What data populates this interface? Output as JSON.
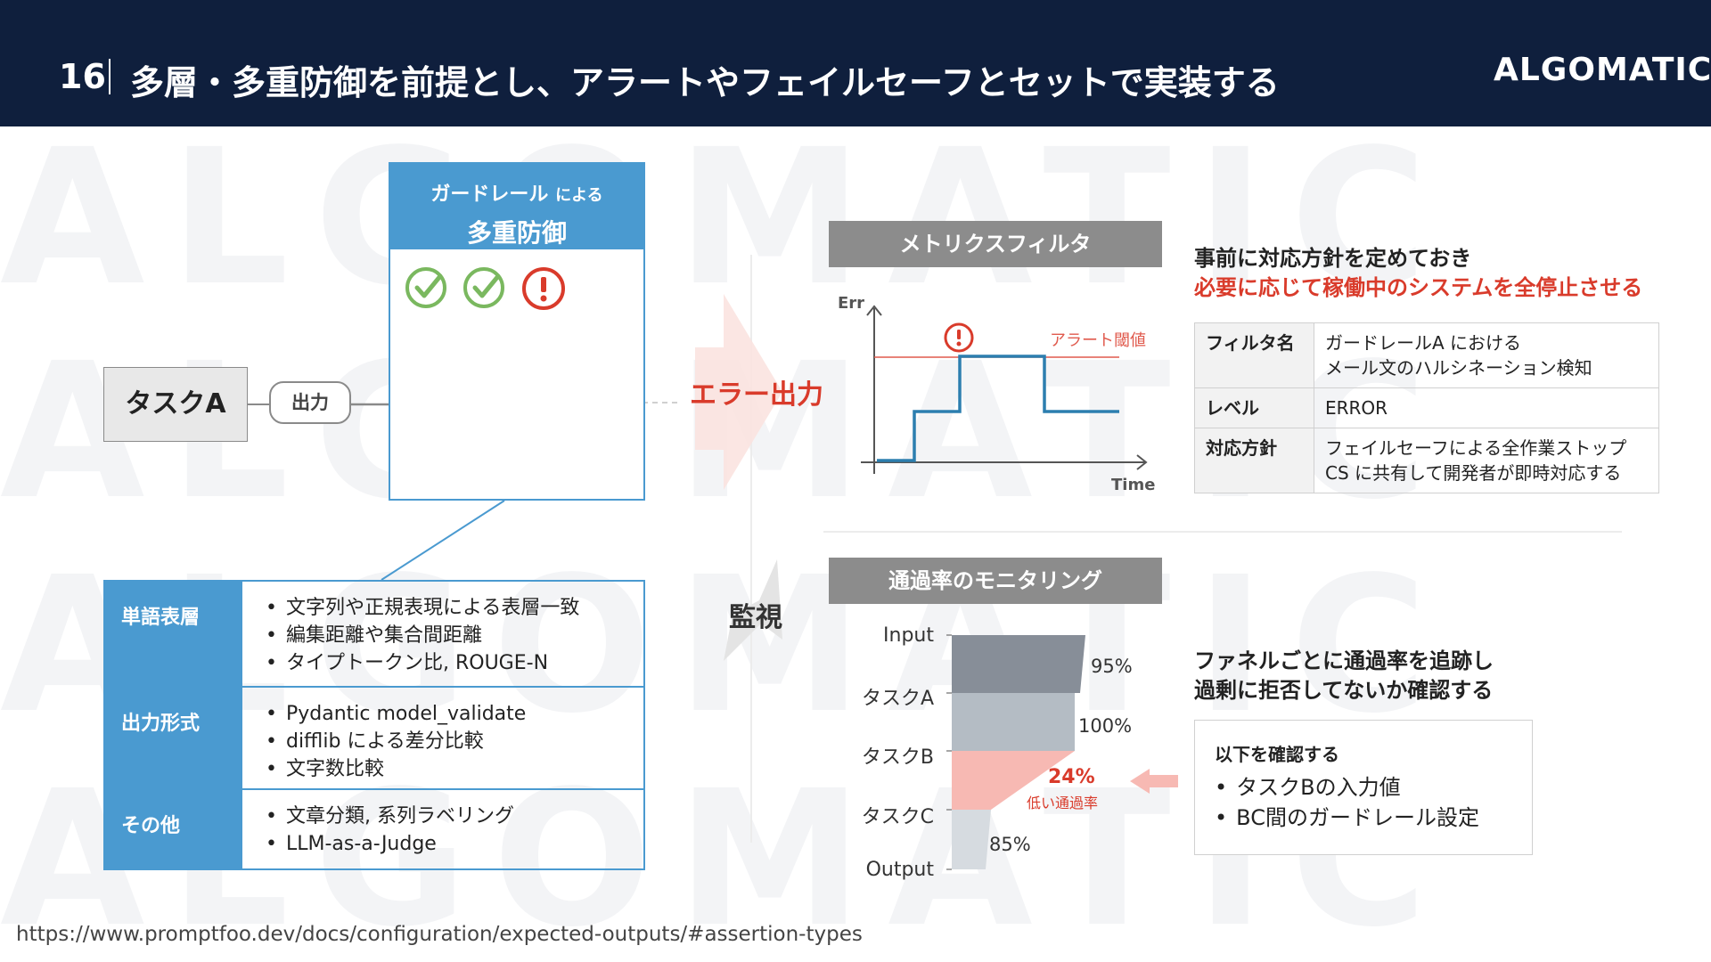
{
  "header": {
    "slide_number": "16",
    "title": "多層・多重防御を前提とし、アラートやフェイルセーフとセットで実装する",
    "logo": "ALGOMATIC"
  },
  "watermark": {
    "lines": [
      "ALGOMATIC",
      "ALGOMATIC",
      "ALGOMATIC",
      "ALGOMATIC"
    ]
  },
  "guardrail": {
    "heading_main": "ガードレール",
    "heading_small": "による",
    "heading_sub": "多重防御",
    "gates": [
      "pass",
      "pass",
      "alert",
      "idle"
    ],
    "task_label": "タスクA",
    "output_label": "出力",
    "error_label": "エラー出力",
    "monitor_label": "監視"
  },
  "methods": [
    {
      "key": "単語表層",
      "items": [
        "文字列や正規表現による表層一致",
        "編集距離や集合間距離",
        "タイプトークン比, ROUGE-N"
      ]
    },
    {
      "key": "出力形式",
      "items": [
        "Pydantic model_validate",
        "difflib による差分比較",
        "文字数比較"
      ]
    },
    {
      "key": "その他",
      "items": [
        "文章分類, 系列ラベリング",
        "LLM-as-a-Judge"
      ]
    }
  ],
  "metrics_filter": {
    "heading": "メトリクスフィルタ",
    "y_axis_label": "Err",
    "x_axis_label": "Time",
    "threshold_label": "アラート閾値",
    "note_line1": "事前に対応方針を定めておき",
    "note_line2": "必要に応じて稼働中のシステムを全停止させる",
    "table": [
      {
        "key": "フィルタ名",
        "lines": [
          "ガードレールA における",
          "メール文のハルシネーション検知"
        ]
      },
      {
        "key": "レベル",
        "lines": [
          "ERROR"
        ]
      },
      {
        "key": "対応方針",
        "lines": [
          "フェイルセーフによる全作業ストップ",
          "CS に共有して開発者が即時対応する"
        ]
      }
    ]
  },
  "pass_rate": {
    "heading": "通過率のモニタリング",
    "stages": [
      "Input",
      "タスクA",
      "タスクB",
      "タスクC",
      "Output"
    ],
    "rates": [
      "95%",
      "100%",
      "24%",
      "85%"
    ],
    "low_rate_label": "低い通過率",
    "note_line1": "ファネルごとに通過率を追跡し",
    "note_line2": "過剰に拒否してないか確認する",
    "check_title": "以下を確認する",
    "check_items": [
      "タスクBの入力値",
      "BC間のガードレール設定"
    ]
  },
  "colors": {
    "navy": "#0f1f3d",
    "blue": "#4a9ad0",
    "red": "#d93b2b",
    "green": "#7ab85f",
    "gray": "#8c8c8c"
  },
  "source_url": "https://www.promptfoo.dev/docs/configuration/expected-outputs/#assertion-types"
}
